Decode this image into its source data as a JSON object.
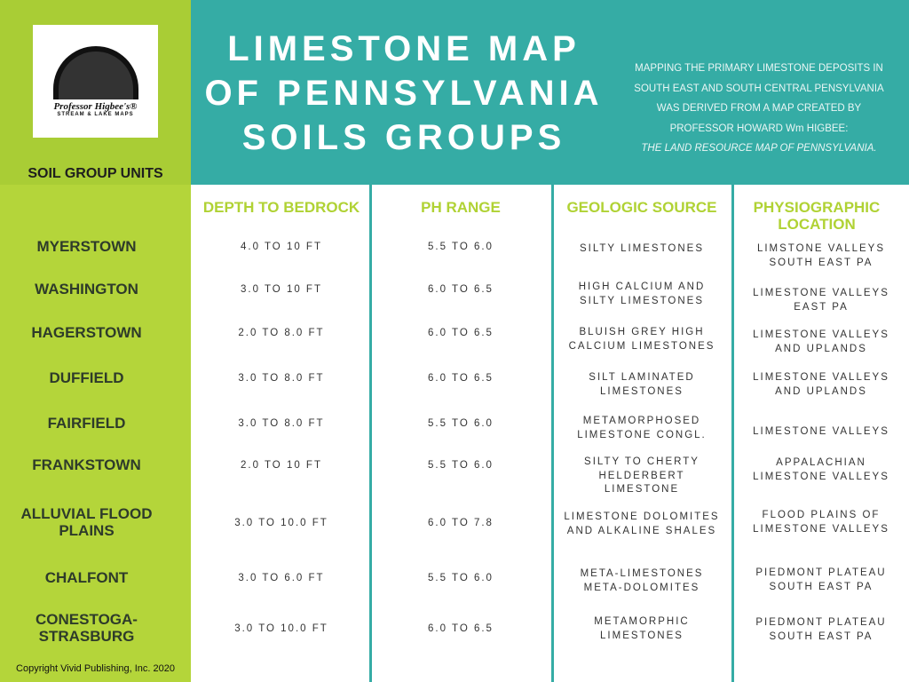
{
  "colors": {
    "green": "#a9cd35",
    "light_green": "#b4d53a",
    "teal": "#35aca5"
  },
  "logo": {
    "text": "Professor Higbee's®",
    "subtext": "STREAM & LAKE MAPS"
  },
  "sidebar_title": "SOIL GROUP UNITS",
  "title_lines": [
    "LIMESTONE MAP",
    "OF PENNSYLVANIA",
    "SOILS GROUPS"
  ],
  "description": [
    "MAPPING THE PRIMARY  LIMESTONE DEPOSITS IN",
    "SOUTH EAST AND SOUTH CENTRAL PENSYLVANIA",
    "WAS DERIVED FROM  A MAP CREATED BY",
    "PROFESSOR HOWARD Wm HIGBEE:",
    "THE LAND RESOURCE MAP OF PENNSYLVANIA."
  ],
  "columns": [
    "DEPTH TO BEDROCK",
    "PH RANGE",
    "GEOLOGIC SOURCE",
    "PHYSIOGRAPHIC LOCATION"
  ],
  "rows": [
    {
      "name": "MYERSTOWN",
      "depth": "4.0 TO 10 FT",
      "ph": "5.5 TO 6.0",
      "source": "SILTY LIMESTONES",
      "location": "LIMSTONE VALLEYS SOUTH EAST PA"
    },
    {
      "name": "WASHINGTON",
      "depth": "3.0 TO 10 FT",
      "ph": "6.0 TO 6.5",
      "source": "HIGH CALCIUM AND SILTY LIMESTONES",
      "location": "LIMESTONE VALLEYS EAST PA"
    },
    {
      "name": "HAGERSTOWN",
      "depth": "2.0 TO 8.0 FT",
      "ph": "6.0 TO 6.5",
      "source": "BLUISH GREY HIGH CALCIUM LIMESTONES",
      "location": "LIMESTONE VALLEYS AND UPLANDS"
    },
    {
      "name": "DUFFIELD",
      "depth": "3.0 TO 8.0 FT",
      "ph": "6.0 TO 6.5",
      "source": "SILT LAMINATED LIMESTONES",
      "location": "LIMESTONE VALLEYS AND UPLANDS"
    },
    {
      "name": "FAIRFIELD",
      "depth": "3.0 TO 8.0 FT",
      "ph": "5.5 TO 6.0",
      "source": "METAMORPHOSED LIMESTONE CONGL.",
      "location": "LIMESTONE VALLEYS"
    },
    {
      "name": "FRANKSTOWN",
      "depth": "2.0 TO 10 FT",
      "ph": "5.5 TO 6.0",
      "source": "SILTY TO CHERTY HELDERBERT LIMESTONE",
      "location": "APPALACHIAN LIMESTONE VALLEYS"
    },
    {
      "name": "ALLUVIAL FLOOD PLAINS",
      "depth": "3.0 TO 10.0 FT",
      "ph": "6.0 TO 7.8",
      "source": "LIMESTONE DOLOMITES AND ALKALINE SHALES",
      "location": "FLOOD PLAINS OF LIMESTONE VALLEYS"
    },
    {
      "name": "CHALFONT",
      "depth": "3.0 TO 6.0 FT",
      "ph": "5.5 TO 6.0",
      "source": "META-LIMESTONES META-DOLOMITES",
      "location": "PIEDMONT PLATEAU SOUTH EAST PA"
    },
    {
      "name": "CONESTOGA-STRASBURG",
      "depth": "3.0 TO 10.0 FT",
      "ph": "6.0 TO 6.5",
      "source": "METAMORPHIC LIMESTONES",
      "location": "PIEDMONT PLATEAU SOUTH EAST PA"
    }
  ],
  "copyright": "Copyright Vivid Publishing, Inc. 2020"
}
